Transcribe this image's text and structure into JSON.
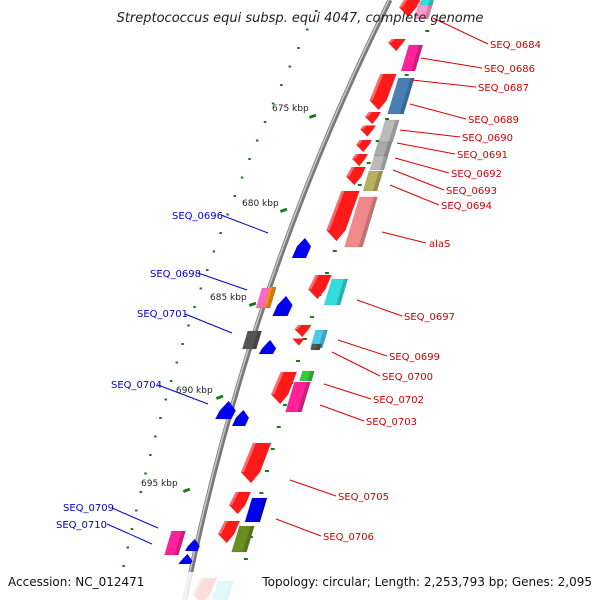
{
  "title": "Streptococcus equi subsp. equi 4047, complete genome",
  "footer": {
    "accession": "Accession: NC_012471",
    "summary": "Topology: circular; Length: 2,253,793 bp; Genes: 2,095"
  },
  "colors": {
    "backbone": "#808080",
    "tick": "#1a7a1a",
    "forward_label": "#cc0000",
    "reverse_label": "#0000cc"
  },
  "scale": {
    "unit": "kbp",
    "tick_labels": [
      "675 kbp",
      "680 kbp",
      "685 kbp",
      "690 kbp",
      "695 kbp"
    ]
  },
  "forward_genes": [
    "SEQ_0684",
    "SEQ_0686",
    "SEQ_0687",
    "SEQ_0689",
    "SEQ_0690",
    "SEQ_0691",
    "SEQ_0692",
    "SEQ_0693",
    "SEQ_0694",
    "alaS",
    "SEQ_0697",
    "SEQ_0699",
    "SEQ_0700",
    "SEQ_0702",
    "SEQ_0703",
    "SEQ_0705",
    "SEQ_0706"
  ],
  "reverse_genes": [
    "SEQ_0696",
    "SEQ_0698",
    "SEQ_0701",
    "SEQ_0704",
    "SEQ_0709",
    "SEQ_0710"
  ]
}
